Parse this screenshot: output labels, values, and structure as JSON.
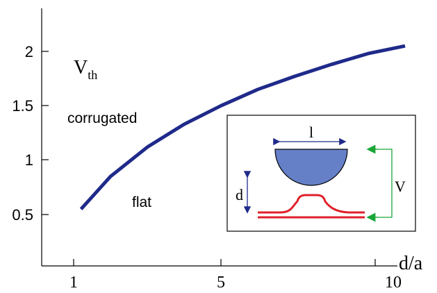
{
  "chart_data": {
    "type": "line",
    "ylabel": {
      "main": "V",
      "sub": "th"
    },
    "xlabel": "d/a",
    "x_ticks": [
      "1",
      "5",
      "10"
    ],
    "y_ticks": [
      "2",
      "1.5",
      "1",
      "0.5"
    ],
    "region_labels": {
      "upper": "corrugated",
      "lower": "flat"
    },
    "series": [
      {
        "color": "#1f2a8a",
        "x": [
          1.2,
          2,
          3,
          4,
          5,
          6,
          7,
          8,
          9,
          10
        ],
        "y": [
          0.55,
          0.85,
          1.12,
          1.33,
          1.5,
          1.65,
          1.77,
          1.88,
          1.98,
          2.05
        ]
      }
    ],
    "xlim": [
      0,
      10.5
    ],
    "ylim": [
      0.2,
      2.35
    ]
  },
  "inset": {
    "label_l": "l",
    "label_d": "d",
    "label_v": "V",
    "colors": {
      "tip_fill": "#6680c8",
      "electrode": "#e0202a",
      "l_arrow": "#1f2a8a",
      "d_arrow": "#1f2a8a",
      "voltage": "#1aa637"
    }
  }
}
